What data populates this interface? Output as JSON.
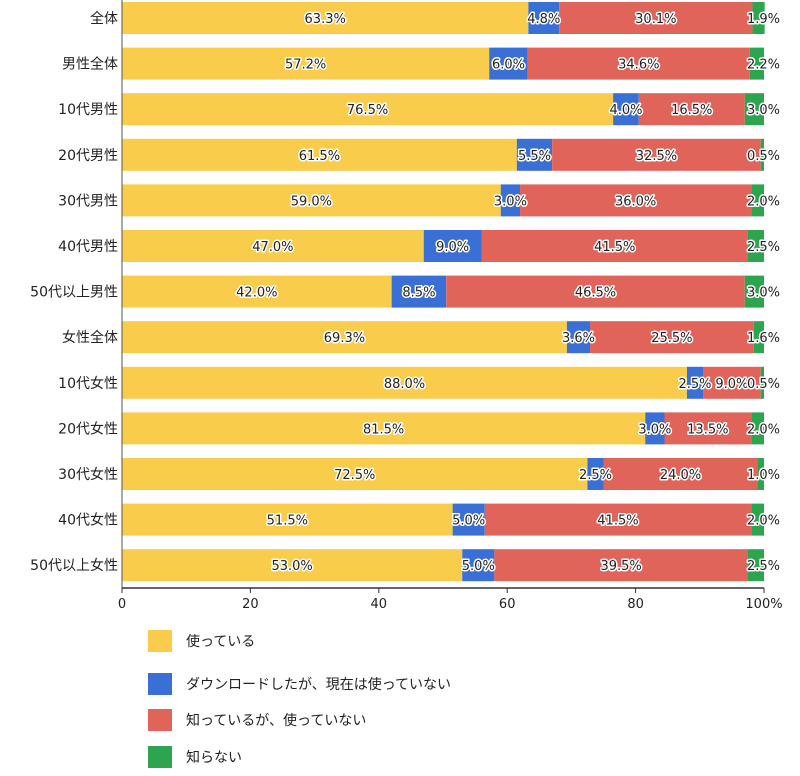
{
  "chart_data": {
    "type": "bar",
    "orientation": "horizontal",
    "stacked": true,
    "categories": [
      "全体",
      "男性全体",
      "10代男性",
      "20代男性",
      "30代男性",
      "40代男性",
      "50代以上男性",
      "女性全体",
      "10代女性",
      "20代女性",
      "30代女性",
      "40代女性",
      "50代以上女性"
    ],
    "series": [
      {
        "name": "使っている",
        "color": "#F9CD4B",
        "values": [
          63.3,
          57.2,
          76.5,
          61.5,
          59.0,
          47.0,
          42.0,
          69.3,
          88.0,
          81.5,
          72.5,
          51.5,
          53.0
        ]
      },
      {
        "name": "ダウンロードしたが、現在は使っていない",
        "color": "#3A6FD6",
        "values": [
          4.8,
          6.0,
          4.0,
          5.5,
          3.0,
          9.0,
          8.5,
          3.6,
          2.5,
          3.0,
          2.5,
          5.0,
          5.0
        ]
      },
      {
        "name": "知っているが、使っていない",
        "color": "#E0645A",
        "values": [
          30.1,
          34.6,
          16.5,
          32.5,
          36.0,
          41.5,
          46.5,
          25.5,
          9.0,
          13.5,
          24.0,
          41.5,
          39.5
        ]
      },
      {
        "name": "知らない",
        "color": "#2DA44E",
        "values": [
          1.9,
          2.2,
          3.0,
          0.5,
          2.0,
          2.5,
          3.0,
          1.6,
          0.5,
          2.0,
          1.0,
          2.0,
          2.5
        ]
      }
    ],
    "xticks": [
      "0",
      "20",
      "40",
      "60",
      "80",
      "100%"
    ],
    "xlim": [
      0,
      100
    ],
    "title": "",
    "xlabel": "",
    "ylabel": "",
    "legend": "bottom"
  }
}
